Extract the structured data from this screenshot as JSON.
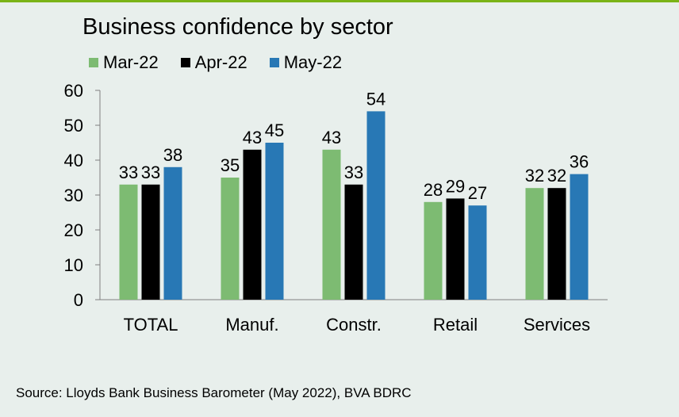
{
  "chart_data": {
    "type": "bar",
    "title": "Business confidence by sector",
    "categories": [
      "TOTAL",
      "Manuf.",
      "Constr.",
      "Retail",
      "Services"
    ],
    "series": [
      {
        "name": "Mar-22",
        "color": "#7dbb72",
        "values": [
          33,
          35,
          43,
          28,
          32
        ]
      },
      {
        "name": "Apr-22",
        "color": "#000000",
        "values": [
          33,
          43,
          33,
          29,
          32
        ]
      },
      {
        "name": "May-22",
        "color": "#2878b5",
        "values": [
          38,
          45,
          54,
          27,
          36
        ]
      }
    ],
    "ylim": [
      0,
      60
    ],
    "yticks": [
      0,
      10,
      20,
      30,
      40,
      50,
      60
    ],
    "legend_position": "top",
    "grid": false,
    "data_labels": true
  },
  "source": "Source: Lloyds Bank Business Barometer (May 2022), BVA BDRC",
  "colors": {
    "accent_rule": "#7ab317",
    "background": "#e8efec"
  }
}
